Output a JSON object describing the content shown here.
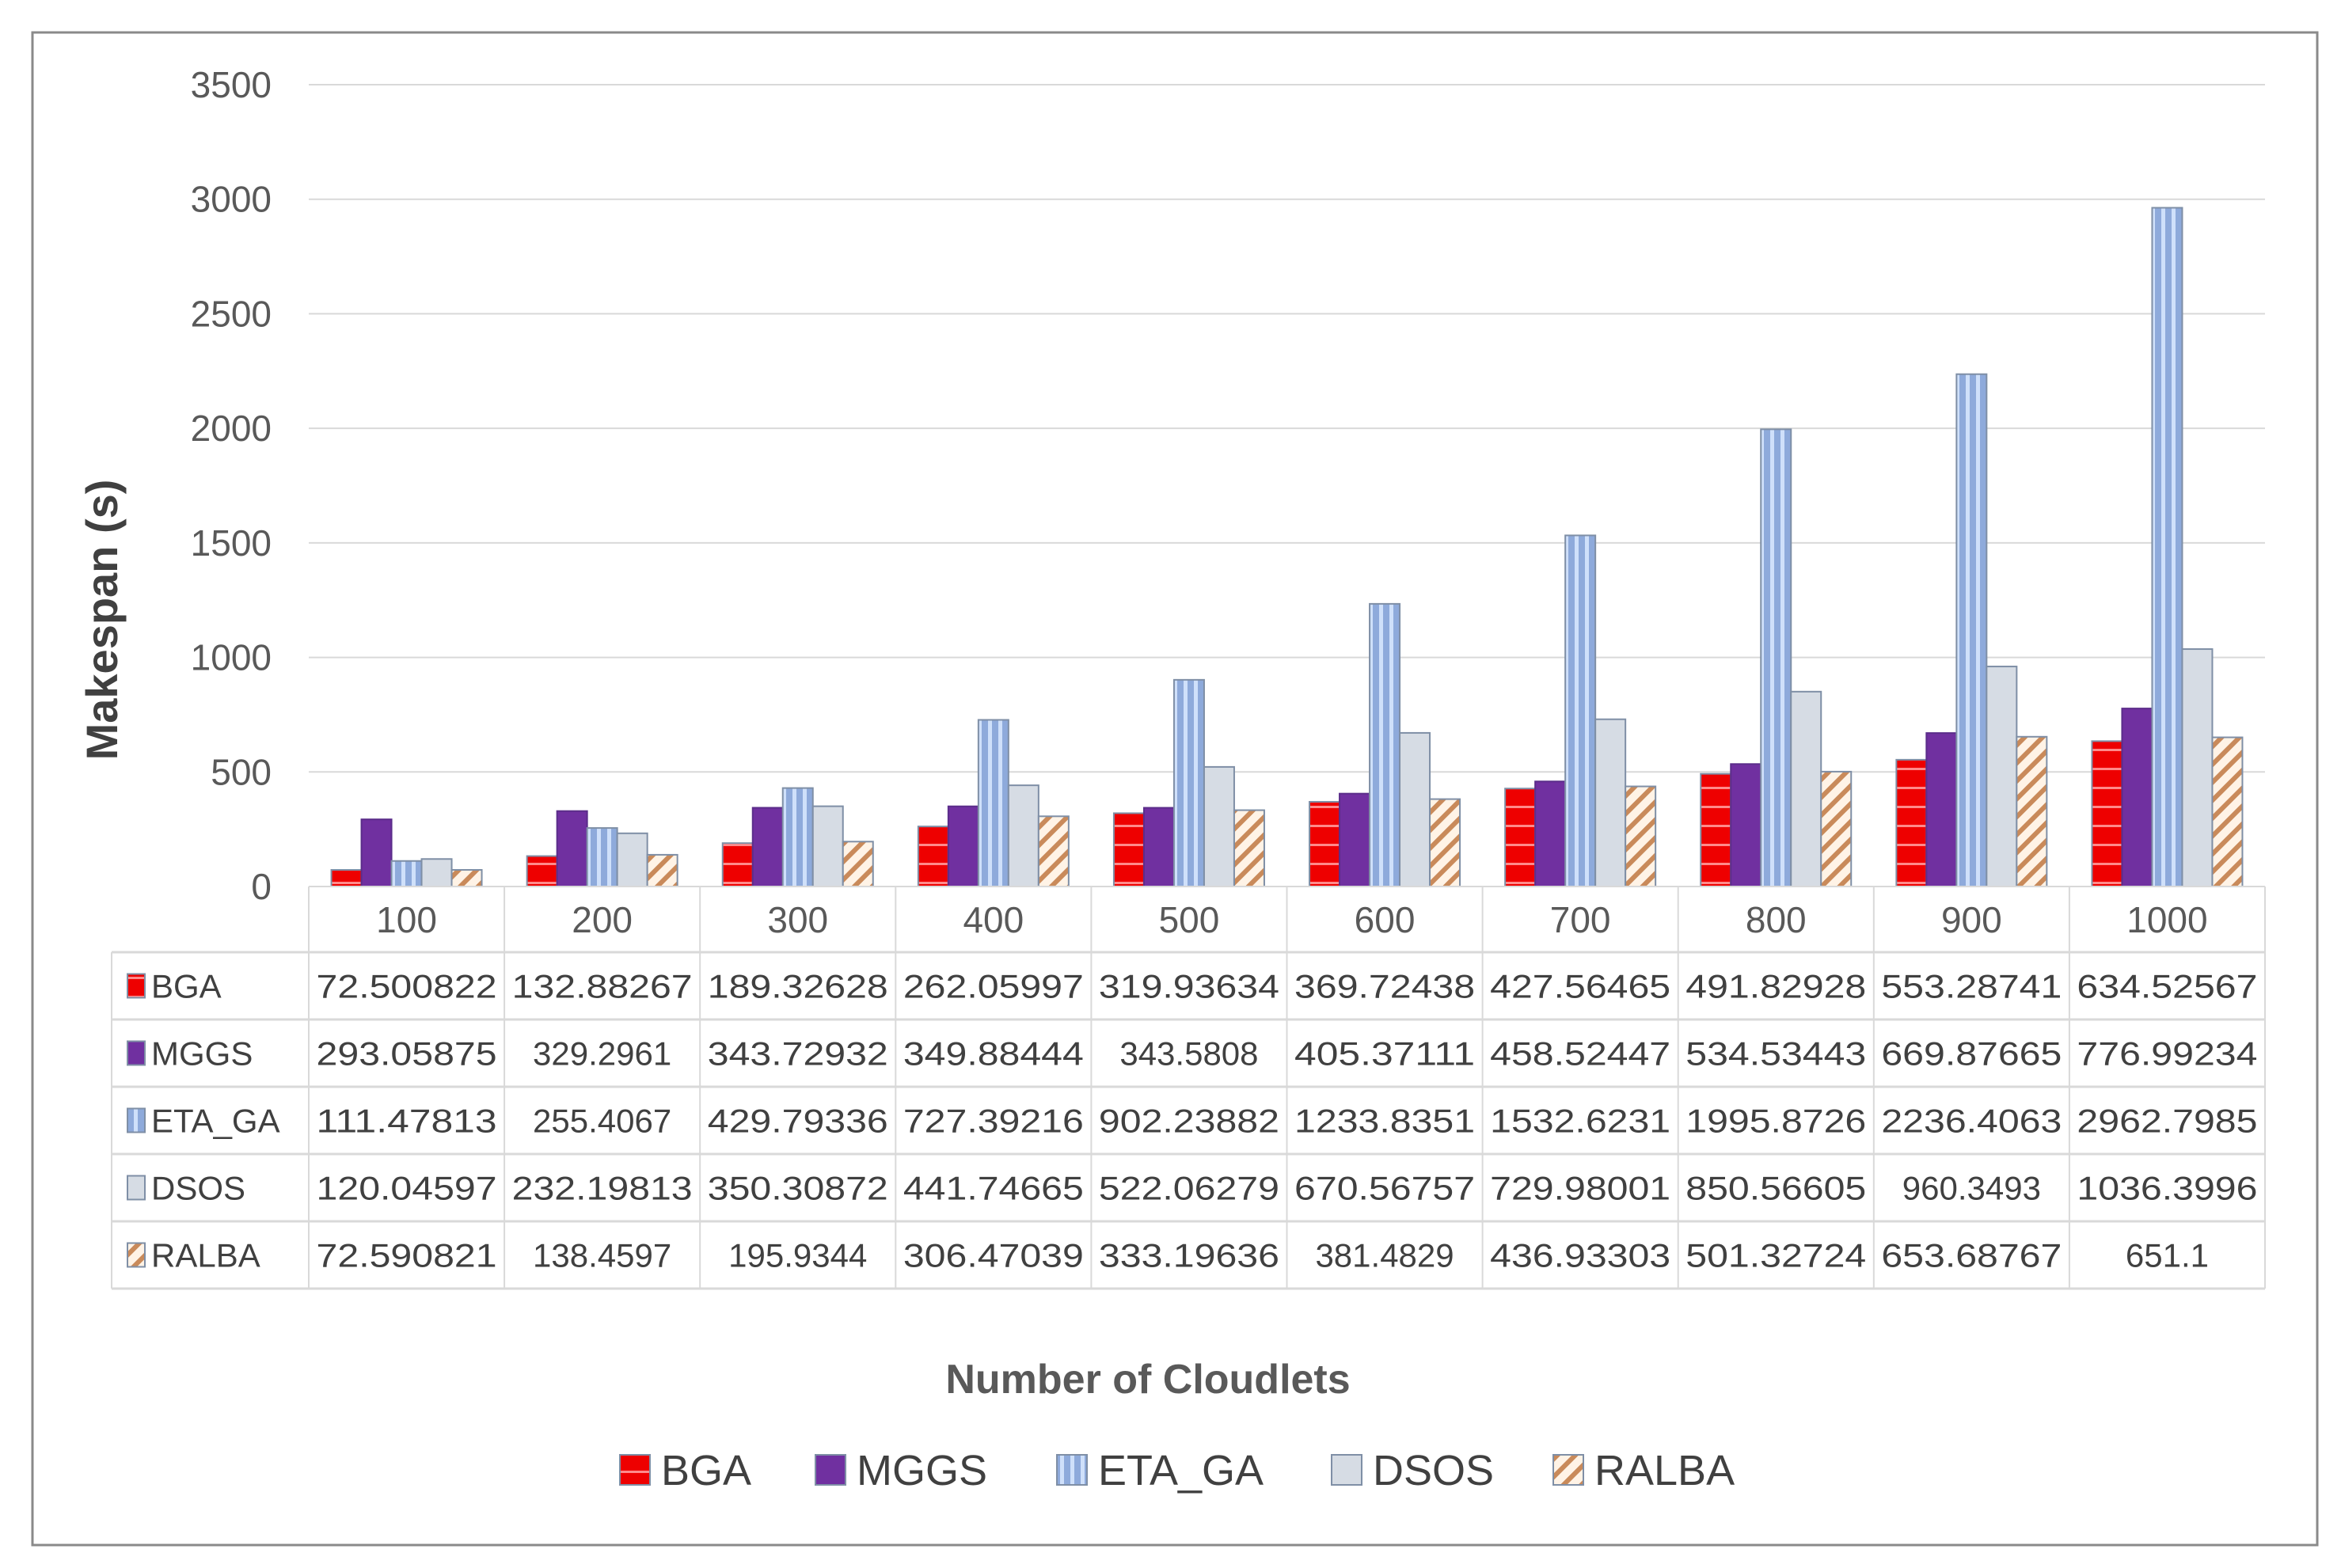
{
  "chart_data": {
    "type": "bar",
    "title": "",
    "xlabel": "Number of Cloudlets",
    "ylabel": "Makespan (s)",
    "ylim": [
      0,
      3500
    ],
    "yticks": [
      0,
      500,
      1000,
      1500,
      2000,
      2500,
      3000,
      3500
    ],
    "grid": true,
    "legend_position": "bottom",
    "data_table": true,
    "categories": [
      "100",
      "200",
      "300",
      "400",
      "500",
      "600",
      "700",
      "800",
      "900",
      "1000"
    ],
    "series": [
      {
        "name": "BGA",
        "color": "#e8141b",
        "pattern": "horizontal-lines",
        "values": [
          "72.500822",
          "132.88267",
          "189.32628",
          "262.05997",
          "319.93634",
          "369.72438",
          "427.56465",
          "491.82928",
          "553.28741",
          "634.52567"
        ]
      },
      {
        "name": "MGGS",
        "color": "#7030a0",
        "pattern": "solid",
        "values": [
          "293.05875",
          "329.2961",
          "343.72932",
          "349.88444",
          "343.5808",
          "405.37111",
          "458.52447",
          "534.53443",
          "669.87665",
          "776.99234"
        ]
      },
      {
        "name": "ETA_GA",
        "color": "#8eaadb",
        "pattern": "vertical-stripes",
        "values": [
          "111.47813",
          "255.4067",
          "429.79336",
          "727.39216",
          "902.23882",
          "1233.8351",
          "1532.6231",
          "1995.8726",
          "2236.4063",
          "2962.7985"
        ]
      },
      {
        "name": "DSOS",
        "color": "#d6dce4",
        "pattern": "solid",
        "values": [
          "120.04597",
          "232.19813",
          "350.30872",
          "441.74665",
          "522.06279",
          "670.56757",
          "729.98001",
          "850.56605",
          "960.3493",
          "1036.3996"
        ]
      },
      {
        "name": "RALBA",
        "color": "#e0a070",
        "pattern": "diagonal-hatch",
        "values": [
          "72.590821",
          "138.4597",
          "195.9344",
          "306.47039",
          "333.19636",
          "381.4829",
          "436.93303",
          "501.32724",
          "653.68767",
          "651.1"
        ]
      }
    ]
  }
}
